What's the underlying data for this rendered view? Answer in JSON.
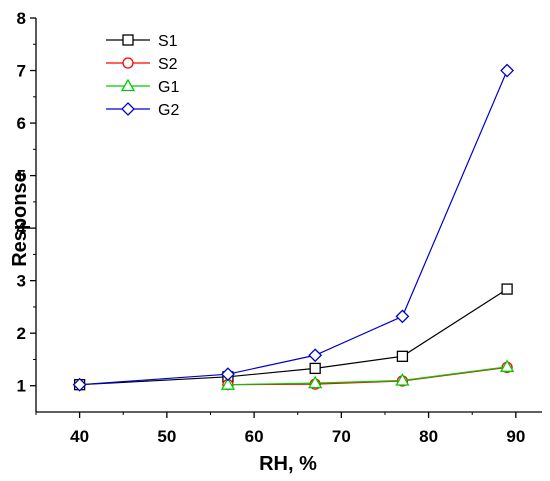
{
  "chart_data": {
    "type": "line",
    "title": "",
    "xlabel": "RH, %",
    "ylabel": "Response",
    "xlim": [
      35,
      93
    ],
    "ylim": [
      0.5,
      8
    ],
    "x_ticks": [
      40,
      50,
      60,
      70,
      80,
      90
    ],
    "y_ticks": [
      1,
      2,
      3,
      4,
      5,
      6,
      7,
      8
    ],
    "grid": false,
    "legend_position": "top-left",
    "series": [
      {
        "name": "S1",
        "color": "#000000",
        "marker": "square",
        "x": [
          40,
          57,
          67,
          77,
          89
        ],
        "y": [
          1.02,
          1.17,
          1.33,
          1.56,
          2.84
        ]
      },
      {
        "name": "S2",
        "color": "#ff0000",
        "marker": "circle",
        "x": [
          57,
          67,
          77,
          89
        ],
        "y": [
          1.02,
          1.03,
          1.09,
          1.35
        ]
      },
      {
        "name": "G1",
        "color": "#00cc00",
        "marker": "triangle",
        "x": [
          57,
          67,
          77,
          89
        ],
        "y": [
          1.02,
          1.05,
          1.1,
          1.36
        ]
      },
      {
        "name": "G2",
        "color": "#0000cc",
        "marker": "diamond",
        "x": [
          40,
          57,
          67,
          77,
          89
        ],
        "y": [
          1.02,
          1.22,
          1.58,
          2.32,
          7.0
        ]
      }
    ]
  }
}
